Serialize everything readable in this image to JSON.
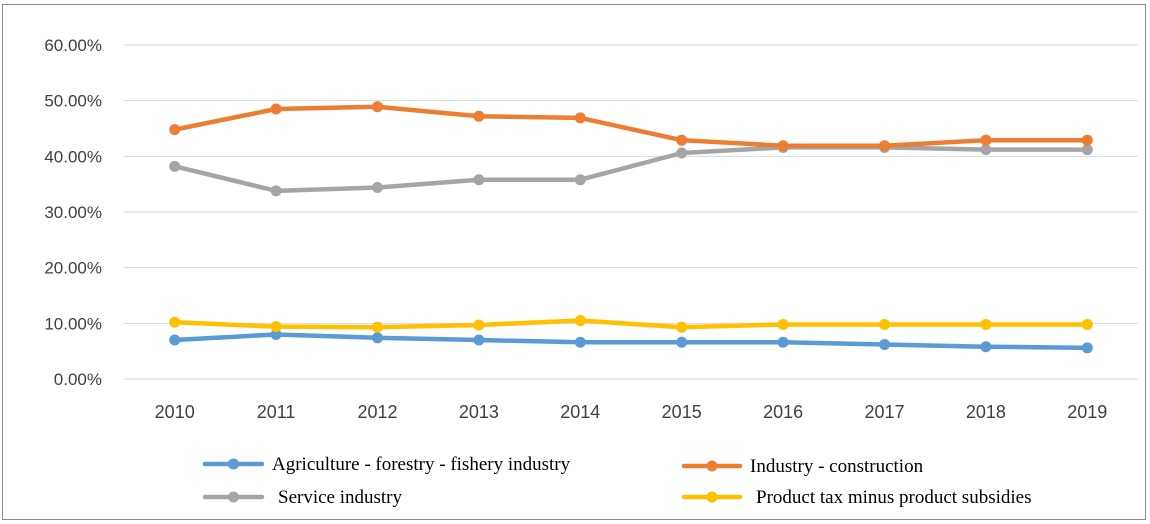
{
  "chart_data": {
    "type": "line",
    "title": "",
    "xlabel": "",
    "ylabel": "",
    "x": [
      "2010",
      "2011",
      "2012",
      "2013",
      "2014",
      "2015",
      "2016",
      "2017",
      "2018",
      "2019"
    ],
    "yticks": [
      "0.00%",
      "10.00%",
      "20.00%",
      "30.00%",
      "40.00%",
      "50.00%",
      "60.00%"
    ],
    "ylim": [
      0,
      60
    ],
    "grid": true,
    "legend_position": "bottom",
    "series": [
      {
        "name": "Agriculture - forestry - fishery industry",
        "color": "#5b9bd5",
        "values": [
          7.0,
          8.0,
          7.4,
          7.0,
          6.6,
          6.6,
          6.6,
          6.2,
          5.8,
          5.6
        ]
      },
      {
        "name": "Industry - construction",
        "color": "#ed7d31",
        "values": [
          44.8,
          48.5,
          48.9,
          47.2,
          46.9,
          42.9,
          41.9,
          41.9,
          42.9,
          42.9
        ]
      },
      {
        "name": "Service industry",
        "color": "#a5a5a5",
        "values": [
          38.2,
          33.8,
          34.4,
          35.8,
          35.8,
          40.6,
          41.6,
          41.6,
          41.2,
          41.2
        ]
      },
      {
        "name": "Product tax minus product subsidies",
        "color": "#ffc000",
        "values": [
          10.2,
          9.4,
          9.3,
          9.7,
          10.5,
          9.3,
          9.8,
          9.8,
          9.8,
          9.8
        ]
      }
    ]
  }
}
